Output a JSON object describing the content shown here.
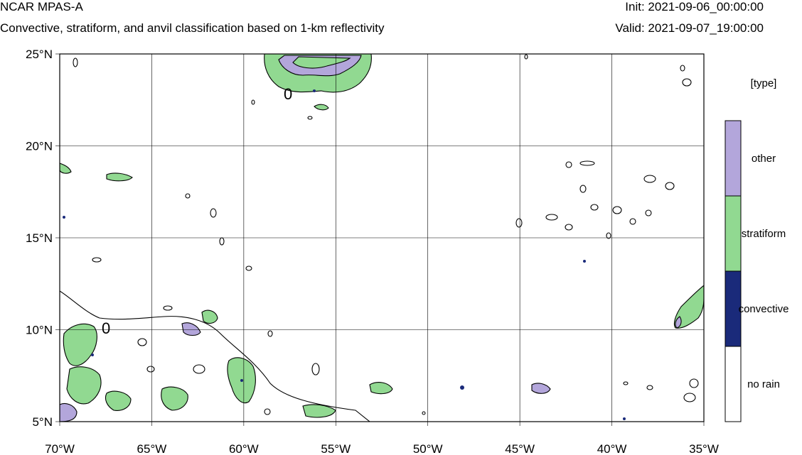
{
  "header": {
    "title": "NCAR MPAS-A",
    "subtitle": "Convective, stratiform, and anvil classification based on 1-km reflectivity",
    "init": "Init: 2021-09-06_00:00:00",
    "valid": "Valid: 2021-09-07_19:00:00"
  },
  "map": {
    "lon_range": [
      -70,
      -35
    ],
    "lat_range": [
      5,
      25
    ],
    "lon_ticks": [
      "70°W",
      "65°W",
      "60°W",
      "55°W",
      "50°W",
      "45°W",
      "40°W",
      "35°W"
    ],
    "lat_ticks": [
      "5°N",
      "10°N",
      "15°N",
      "20°N",
      "25°N"
    ],
    "grid": true,
    "contour_labels": [
      "0",
      "0"
    ]
  },
  "legend": {
    "title": "[type]",
    "categories": [
      {
        "label": "other",
        "color": "#b3a6db"
      },
      {
        "label": "stratiform",
        "color": "#91d991"
      },
      {
        "label": "convective",
        "color": "#1a2a7a"
      },
      {
        "label": "no rain",
        "color": "#ffffff"
      }
    ]
  },
  "colors": {
    "other": "#b3a6db",
    "stratiform": "#91d991",
    "convective": "#1a2a7a",
    "no_rain": "#ffffff",
    "grid": "#000000"
  }
}
